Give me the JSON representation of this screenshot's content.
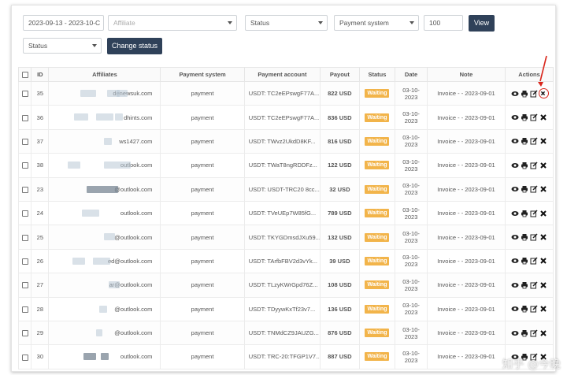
{
  "filters": {
    "date_range": "2023-09-13 - 2023-10-C",
    "affiliate_placeholder": "Affiliate",
    "status_select": "Status",
    "payment_system_select": "Payment system",
    "limit": "100",
    "view_label": "View",
    "bulk_status_select": "Status",
    "change_status_label": "Change status"
  },
  "table": {
    "columns": [
      "ID",
      "Affiliates",
      "Payment system",
      "Payment account",
      "Payout",
      "Status",
      "Date",
      "Note",
      "Actions"
    ],
    "rows": [
      {
        "id": "35",
        "affiliate": "denewsuk.com",
        "payment": "payment",
        "account": "USDT: TC2eEPswgF77A...",
        "payout": "822 USD",
        "status": "Waiting",
        "date1": "03-10-",
        "date2": "2023",
        "note": "Invoice - - 2023-09-01"
      },
      {
        "id": "36",
        "affiliate": "dhints.com",
        "payment": "payment",
        "account": "USDT: TC2eEPswgF77A...",
        "payout": "836 USD",
        "status": "Waiting",
        "date1": "03-10-",
        "date2": "2023",
        "note": "Invoice - - 2023-09-01"
      },
      {
        "id": "37",
        "affiliate": "ws1427.com",
        "payment": "payment",
        "account": "USDT: TWvz2UkdD8KF...",
        "payout": "816 USD",
        "status": "Waiting",
        "date1": "03-10-",
        "date2": "2023",
        "note": "Invoice - - 2023-09-01"
      },
      {
        "id": "38",
        "affiliate": "outlook.com",
        "payment": "payment",
        "account": "USDT: TWaT8ngRDDFz...",
        "payout": "122 USD",
        "status": "Waiting",
        "date1": "03-10-",
        "date2": "2023",
        "note": "Invoice - - 2023-09-01"
      },
      {
        "id": "23",
        "affiliate": "@outlook.com",
        "payment": "payment",
        "account": "USDT: USDT-TRC20 8cc...",
        "payout": "32 USD",
        "status": "Waiting",
        "date1": "03-10-",
        "date2": "2023",
        "note": "Invoice - - 2023-09-01"
      },
      {
        "id": "24",
        "affiliate": "outlook.com",
        "payment": "payment",
        "account": "USDT: TVeUEp7W85fG...",
        "payout": "789 USD",
        "status": "Waiting",
        "date1": "03-10-",
        "date2": "2023",
        "note": "Invoice - - 2023-09-01"
      },
      {
        "id": "25",
        "affiliate": "@outlook.com",
        "payment": "payment",
        "account": "USDT: TKYGDmsdJXu59...",
        "payout": "132 USD",
        "status": "Waiting",
        "date1": "03-10-",
        "date2": "2023",
        "note": "Invoice - - 2023-09-01"
      },
      {
        "id": "26",
        "affiliate": "ed@outlook.com",
        "payment": "payment",
        "account": "USDT: TArfbFBV2d3vYk...",
        "payout": "39 USD",
        "status": "Waiting",
        "date1": "03-10-",
        "date2": "2023",
        "note": "Invoice - - 2023-09-01"
      },
      {
        "id": "27",
        "affiliate": "ar@outlook.com",
        "payment": "payment",
        "account": "USDT: TLzyKWrGpd76Z...",
        "payout": "108 USD",
        "status": "Waiting",
        "date1": "03-10-",
        "date2": "2023",
        "note": "Invoice - - 2023-09-01"
      },
      {
        "id": "28",
        "affiliate": "@outlook.com",
        "payment": "payment",
        "account": "USDT: TDyywKxTf23v7...",
        "payout": "136 USD",
        "status": "Waiting",
        "date1": "03-10-",
        "date2": "2023",
        "note": "Invoice - - 2023-09-01"
      },
      {
        "id": "29",
        "affiliate": "@outlook.com",
        "payment": "payment",
        "account": "USDT: TNMdCZ9JAUZG...",
        "payout": "876 USD",
        "status": "Waiting",
        "date1": "03-10-",
        "date2": "2023",
        "note": "Invoice - - 2023-09-01"
      },
      {
        "id": "30",
        "affiliate": "outlook.com",
        "payment": "payment",
        "account": "USDT: TRC-20:TFGP1V7...",
        "payout": "887 USD",
        "status": "Waiting",
        "date1": "03-10-",
        "date2": "2023",
        "note": "Invoice - - 2023-09-01"
      }
    ]
  },
  "action_icons": [
    "eye-icon",
    "print-icon",
    "edit-icon",
    "close-icon"
  ],
  "colors": {
    "primary_button": "#2f4159",
    "waiting_badge": "#f2b44a",
    "highlight": "#d9261c"
  },
  "watermark": "知乎 @今晚"
}
